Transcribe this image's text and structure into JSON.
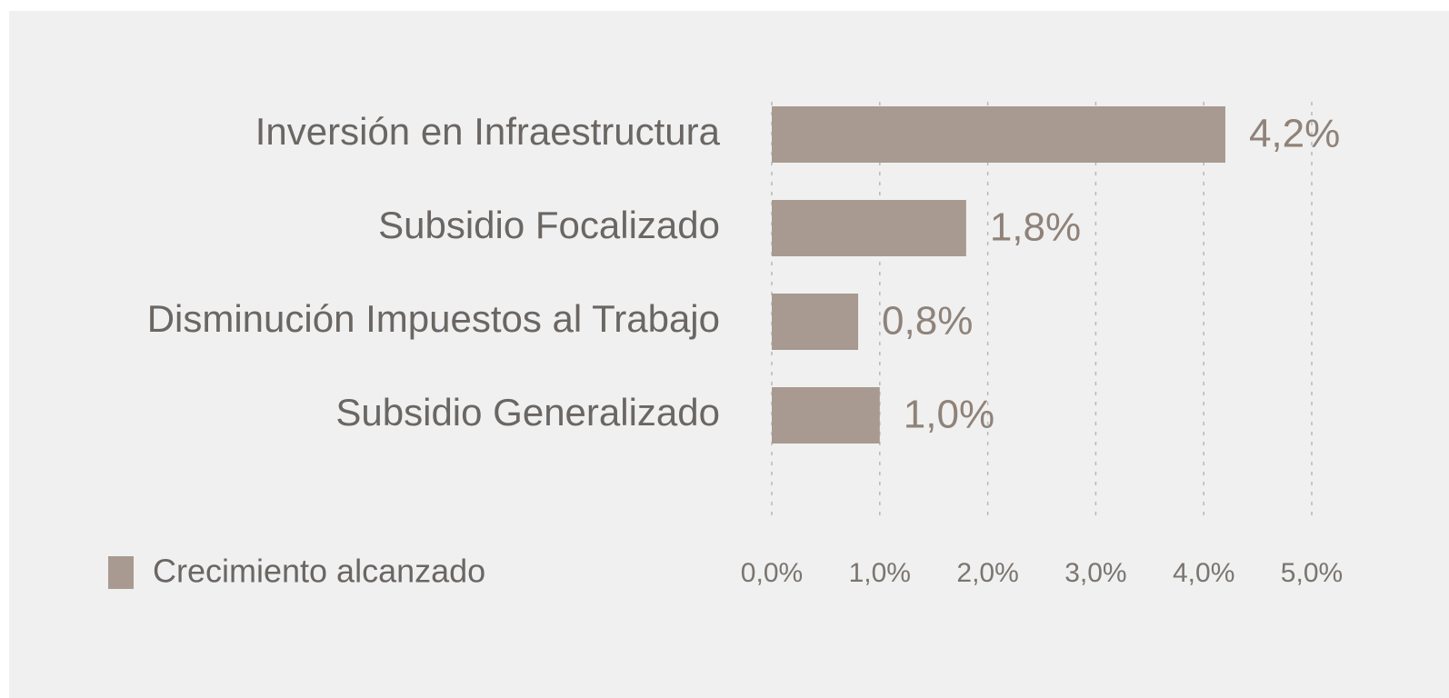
{
  "chart_data": {
    "type": "bar",
    "orientation": "horizontal",
    "categories": [
      "Inversión en Infraestructura",
      "Subsidio Focalizado",
      "Disminución Impuestos al Trabajo",
      "Subsidio Generalizado"
    ],
    "series": [
      {
        "name": "Crecimiento alcanzado",
        "color": "#a89a90",
        "values": [
          4.2,
          1.8,
          0.8,
          1.0
        ],
        "value_labels": [
          "4,2%",
          "1,8%",
          "0,8%",
          "1,0%"
        ]
      }
    ],
    "xlim": [
      0,
      5
    ],
    "xticks": [
      {
        "value": 0,
        "label": "0,0%"
      },
      {
        "value": 1,
        "label": "1,0%"
      },
      {
        "value": 2,
        "label": "2,0%"
      },
      {
        "value": 3,
        "label": "3,0%"
      },
      {
        "value": 4,
        "label": "4,0%"
      },
      {
        "value": 5,
        "label": "5,0%"
      }
    ],
    "grid": true,
    "legend": "bottom-left"
  }
}
